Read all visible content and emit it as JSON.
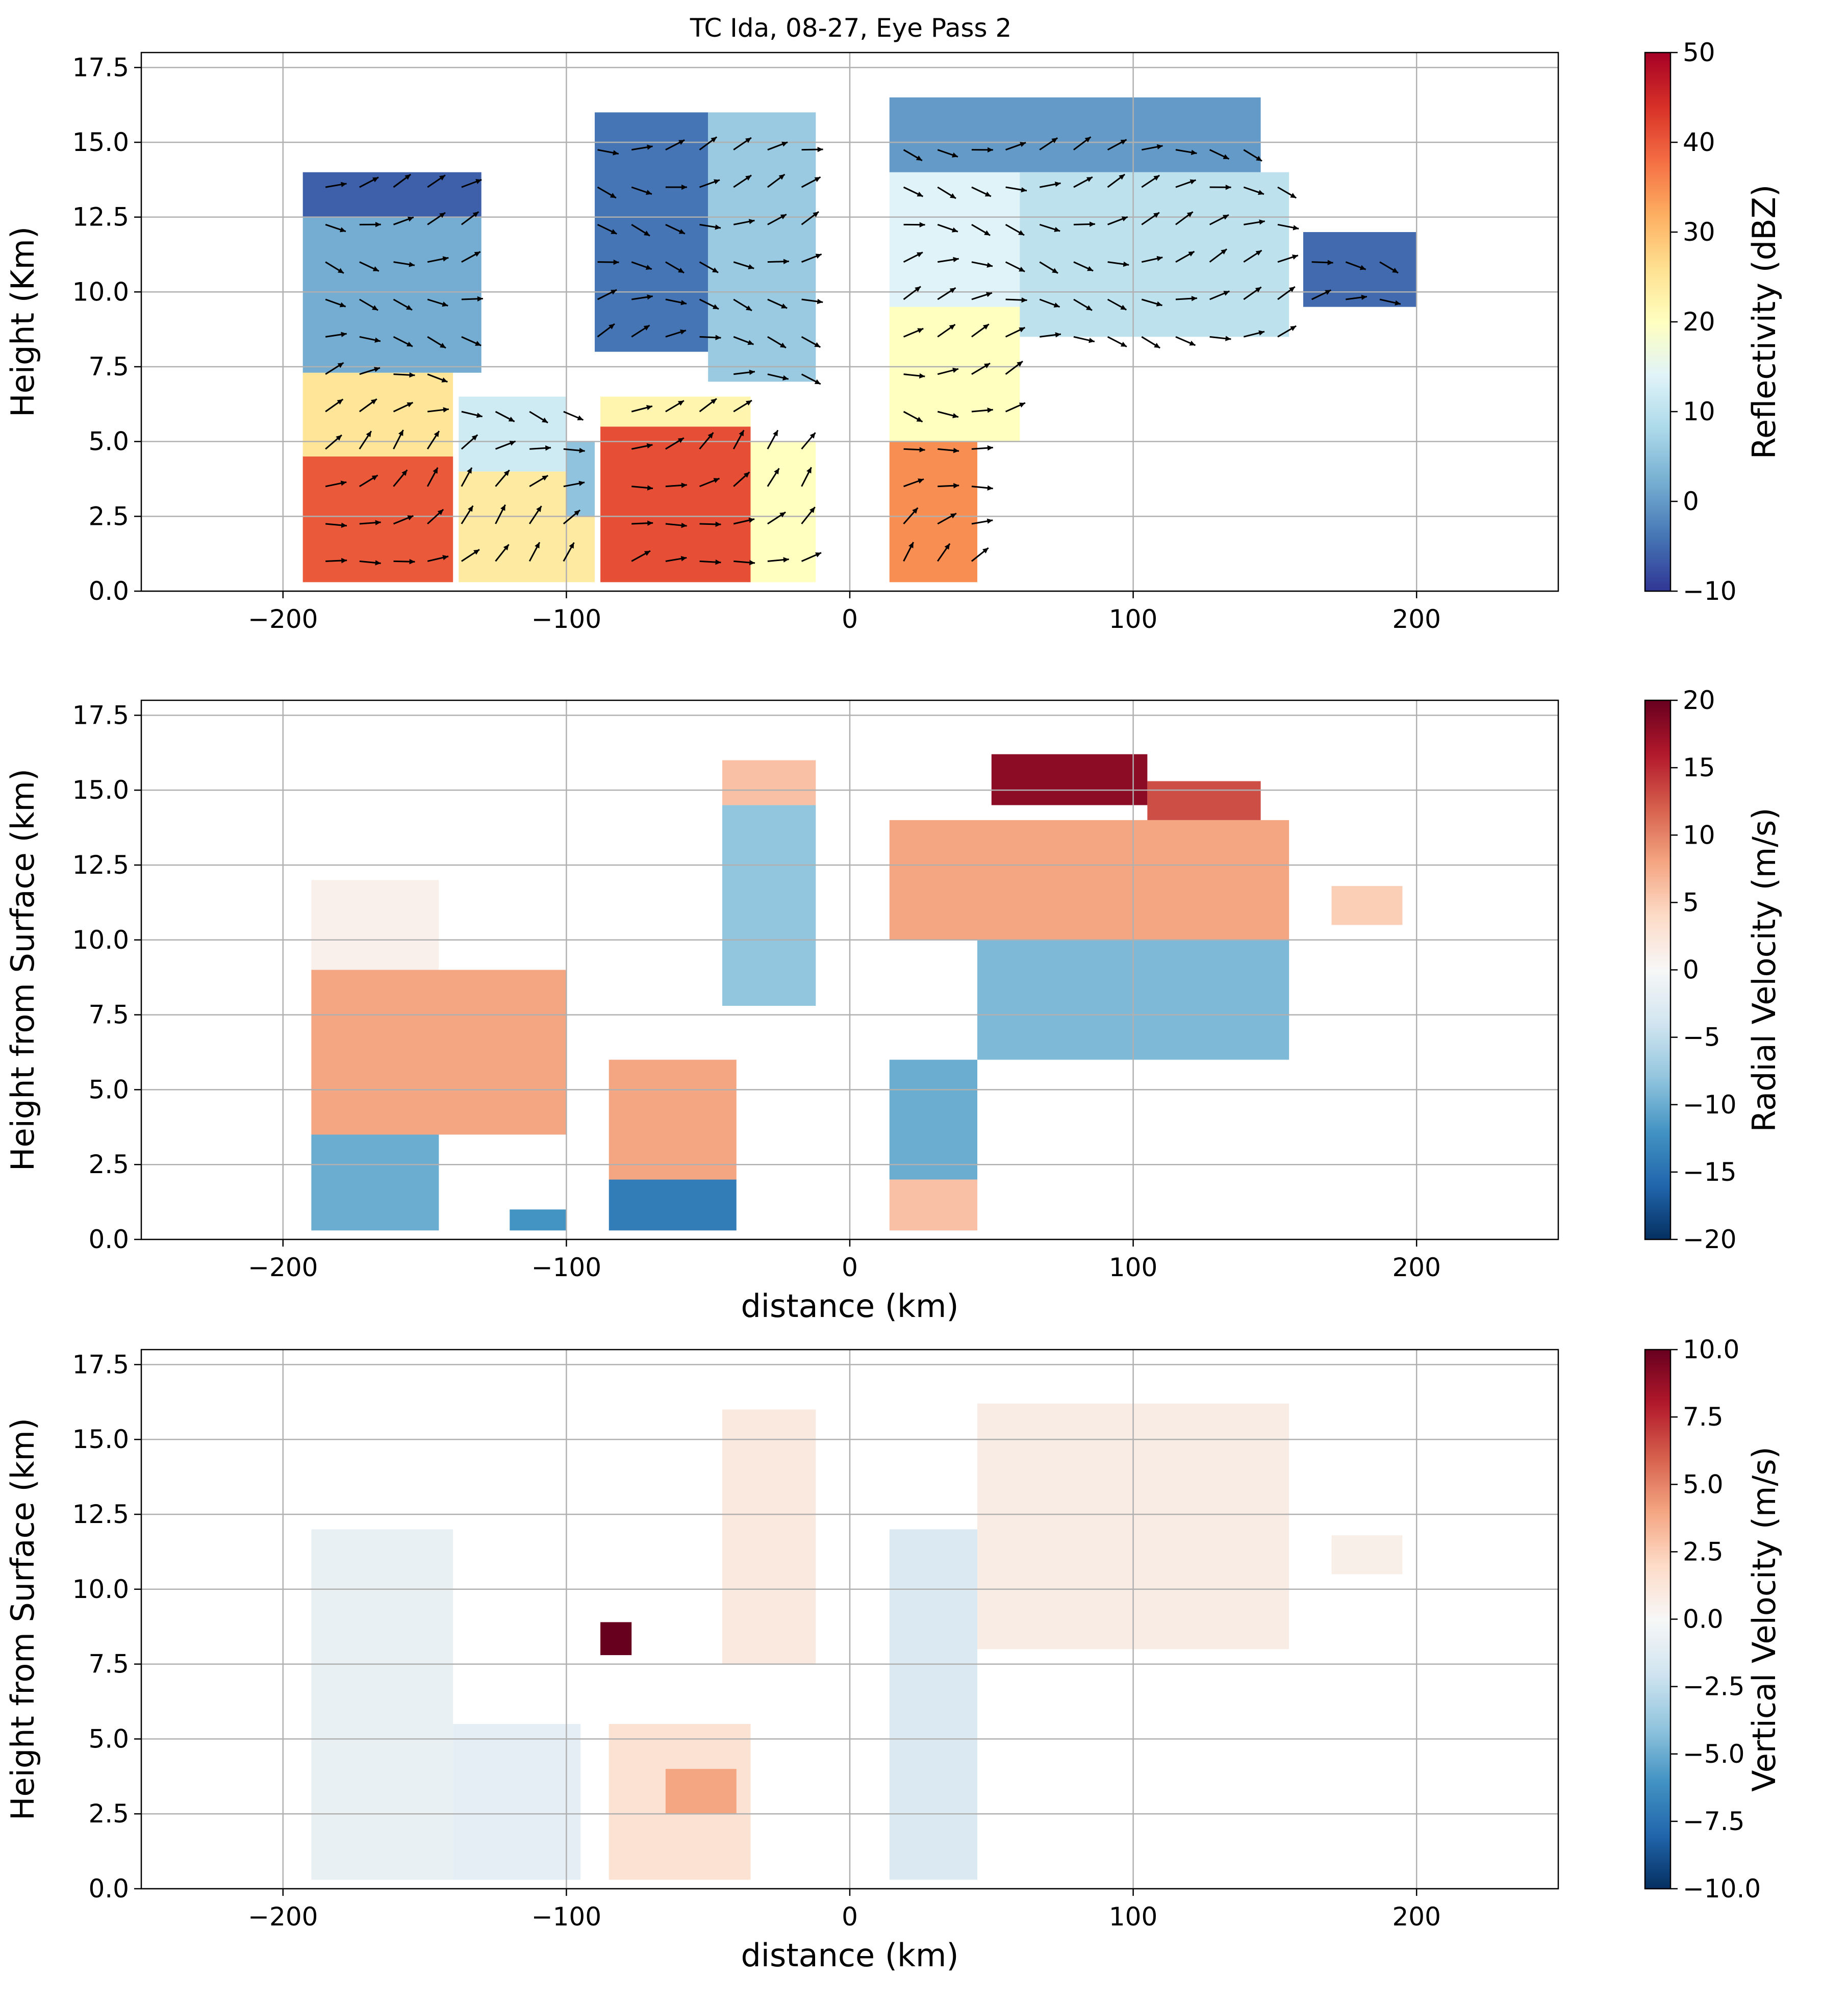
{
  "figure": {
    "title": "TC Ida, 08-27, Eye Pass 2"
  },
  "chart_data": [
    {
      "type": "heatmap",
      "panel": "top",
      "variable": "reflectivity",
      "title": "TC Ida, 08-27, Eye Pass 2",
      "xlabel": "",
      "ylabel": "Height (Km)",
      "xlim": [
        -250,
        250
      ],
      "ylim": [
        0,
        18
      ],
      "xticks": [
        -200,
        -100,
        0,
        100,
        200
      ],
      "xtick_labels": [
        "−200",
        "−100",
        "0",
        "100",
        "200"
      ],
      "yticks": [
        0,
        2.5,
        5,
        7.5,
        10,
        12.5,
        15,
        17.5
      ],
      "ytick_labels": [
        "0.0",
        "2.5",
        "5.0",
        "7.5",
        "10.0",
        "12.5",
        "15.0",
        "17.5"
      ],
      "grid": true,
      "colorbar": {
        "label": "Reflectivity (dBZ)",
        "range": [
          -10,
          50
        ],
        "ticks": [
          -10,
          0,
          10,
          20,
          30,
          40,
          50
        ],
        "tick_labels": [
          "−10",
          "0",
          "10",
          "20",
          "30",
          "40",
          "50"
        ],
        "colormap": "RdYlBu_r"
      },
      "wind_vectors": true,
      "regions": [
        {
          "x": [
            -193,
            -140
          ],
          "y": [
            0.3,
            4.5
          ],
          "value": 40
        },
        {
          "x": [
            -193,
            -140
          ],
          "y": [
            4.5,
            7.3
          ],
          "value": 25
        },
        {
          "x": [
            -193,
            -130
          ],
          "y": [
            7.3,
            12.5
          ],
          "value": 2
        },
        {
          "x": [
            -193,
            -130
          ],
          "y": [
            12.5,
            14.0
          ],
          "value": -6
        },
        {
          "x": [
            -138,
            -90
          ],
          "y": [
            0.3,
            4.0
          ],
          "value": 24
        },
        {
          "x": [
            -138,
            -100
          ],
          "y": [
            4.0,
            6.5
          ],
          "value": 12
        },
        {
          "x": [
            -100,
            -90
          ],
          "y": [
            2.5,
            5.0
          ],
          "value": 5
        },
        {
          "x": [
            -88,
            -35
          ],
          "y": [
            0.3,
            5.5
          ],
          "value": 41
        },
        {
          "x": [
            -88,
            -35
          ],
          "y": [
            5.5,
            6.5
          ],
          "value": 22
        },
        {
          "x": [
            -90,
            -50
          ],
          "y": [
            8.0,
            16.0
          ],
          "value": -4
        },
        {
          "x": [
            -50,
            -12
          ],
          "y": [
            7.0,
            16.0
          ],
          "value": 6
        },
        {
          "x": [
            -35,
            -12
          ],
          "y": [
            0.3,
            5.0
          ],
          "value": 20
        },
        {
          "x": [
            14,
            45
          ],
          "y": [
            0.3,
            5.0
          ],
          "value": 35
        },
        {
          "x": [
            14,
            60
          ],
          "y": [
            5.0,
            9.5
          ],
          "value": 20
        },
        {
          "x": [
            14,
            70
          ],
          "y": [
            9.5,
            14.0
          ],
          "value": 14
        },
        {
          "x": [
            14,
            145
          ],
          "y": [
            14.0,
            16.5
          ],
          "value": 0
        },
        {
          "x": [
            60,
            155
          ],
          "y": [
            8.5,
            14.0
          ],
          "value": 10
        },
        {
          "x": [
            160,
            200
          ],
          "y": [
            9.5,
            12.0
          ],
          "value": -5
        }
      ]
    },
    {
      "type": "heatmap",
      "panel": "middle",
      "variable": "radial_velocity",
      "xlabel": "distance (km)",
      "ylabel": "Height from Surface (km)",
      "xlim": [
        -250,
        250
      ],
      "ylim": [
        0,
        18
      ],
      "xticks": [
        -200,
        -100,
        0,
        100,
        200
      ],
      "xtick_labels": [
        "−200",
        "−100",
        "0",
        "100",
        "200"
      ],
      "yticks": [
        0,
        2.5,
        5,
        7.5,
        10,
        12.5,
        15,
        17.5
      ],
      "ytick_labels": [
        "0.0",
        "2.5",
        "5.0",
        "7.5",
        "10.0",
        "12.5",
        "15.0",
        "17.5"
      ],
      "grid": true,
      "colorbar": {
        "label": "Radial Velocity (m/s)",
        "range": [
          -20,
          20
        ],
        "ticks": [
          -20,
          -15,
          -10,
          -5,
          0,
          5,
          10,
          15,
          20
        ],
        "tick_labels": [
          "−20",
          "−15",
          "−10",
          "−5",
          "0",
          "5",
          "10",
          "15",
          "20"
        ],
        "colormap": "RdBu_r"
      },
      "regions": [
        {
          "x": [
            -190,
            -145
          ],
          "y": [
            0.3,
            3.5
          ],
          "value": -10
        },
        {
          "x": [
            -190,
            -100
          ],
          "y": [
            3.5,
            9.0
          ],
          "value": 8
        },
        {
          "x": [
            -190,
            -145
          ],
          "y": [
            9.0,
            12.0
          ],
          "value": 1
        },
        {
          "x": [
            -120,
            -100
          ],
          "y": [
            0.3,
            1.0
          ],
          "value": -12
        },
        {
          "x": [
            -85,
            -40
          ],
          "y": [
            0.3,
            2.0
          ],
          "value": -14
        },
        {
          "x": [
            -85,
            -40
          ],
          "y": [
            2.0,
            6.0
          ],
          "value": 8
        },
        {
          "x": [
            -45,
            -12
          ],
          "y": [
            7.8,
            14.5
          ],
          "value": -8
        },
        {
          "x": [
            -45,
            -12
          ],
          "y": [
            14.5,
            16.0
          ],
          "value": 6
        },
        {
          "x": [
            14,
            45
          ],
          "y": [
            0.3,
            2.0
          ],
          "value": 6
        },
        {
          "x": [
            14,
            45
          ],
          "y": [
            2.0,
            6.0
          ],
          "value": -10
        },
        {
          "x": [
            45,
            155
          ],
          "y": [
            6.0,
            10.0
          ],
          "value": -9
        },
        {
          "x": [
            14,
            155
          ],
          "y": [
            10.0,
            14.0
          ],
          "value": 8
        },
        {
          "x": [
            50,
            105
          ],
          "y": [
            14.5,
            16.2
          ],
          "value": 18
        },
        {
          "x": [
            105,
            145
          ],
          "y": [
            14.0,
            15.3
          ],
          "value": 13
        },
        {
          "x": [
            170,
            195
          ],
          "y": [
            10.5,
            11.8
          ],
          "value": 5
        }
      ]
    },
    {
      "type": "heatmap",
      "panel": "bottom",
      "variable": "vertical_velocity",
      "xlabel": "distance (km)",
      "ylabel": "Height from Surface (km)",
      "xlim": [
        -250,
        250
      ],
      "ylim": [
        0,
        18
      ],
      "xticks": [
        -200,
        -100,
        0,
        100,
        200
      ],
      "xtick_labels": [
        "−200",
        "−100",
        "0",
        "100",
        "200"
      ],
      "yticks": [
        0,
        2.5,
        5,
        7.5,
        10,
        12.5,
        15,
        17.5
      ],
      "ytick_labels": [
        "0.0",
        "2.5",
        "5.0",
        "7.5",
        "10.0",
        "12.5",
        "15.0",
        "17.5"
      ],
      "grid": true,
      "colorbar": {
        "label": "Vertical Velocity (m/s)",
        "range": [
          -10,
          10
        ],
        "ticks": [
          -10,
          -7.5,
          -5,
          -2.5,
          0,
          2.5,
          5,
          7.5,
          10
        ],
        "tick_labels": [
          "−10.0",
          "−7.5",
          "−5.0",
          "−2.5",
          "0.0",
          "2.5",
          "5.0",
          "7.5",
          "10.0"
        ],
        "colormap": "RdBu_r"
      },
      "regions": [
        {
          "x": [
            -190,
            -140
          ],
          "y": [
            0.3,
            12.0
          ],
          "value": -0.8
        },
        {
          "x": [
            -140,
            -95
          ],
          "y": [
            0.3,
            5.5
          ],
          "value": -1
        },
        {
          "x": [
            -85,
            -35
          ],
          "y": [
            0.3,
            5.5
          ],
          "value": 1.5
        },
        {
          "x": [
            -65,
            -40
          ],
          "y": [
            2.5,
            4.0
          ],
          "value": 4
        },
        {
          "x": [
            -88,
            -77
          ],
          "y": [
            7.8,
            8.9
          ],
          "value": 10
        },
        {
          "x": [
            -45,
            -12
          ],
          "y": [
            7.5,
            16.0
          ],
          "value": 1
        },
        {
          "x": [
            14,
            45
          ],
          "y": [
            0.3,
            12.0
          ],
          "value": -1.5
        },
        {
          "x": [
            45,
            155
          ],
          "y": [
            8.0,
            16.2
          ],
          "value": 0.8
        },
        {
          "x": [
            170,
            195
          ],
          "y": [
            10.5,
            11.8
          ],
          "value": 0.6
        }
      ]
    }
  ]
}
